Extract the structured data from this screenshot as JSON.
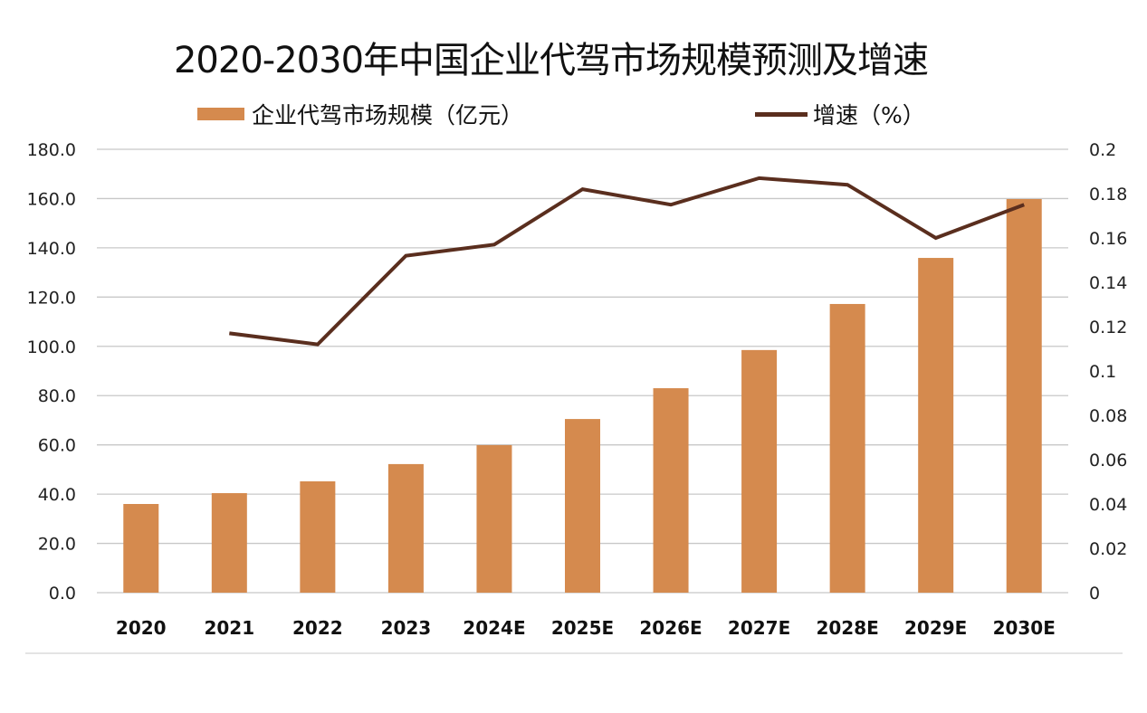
{
  "chart_data": {
    "type": "bar",
    "title": "2020-2030年中国企业代驾市场规模预测及增速",
    "categories": [
      "2020",
      "2021",
      "2022",
      "2023",
      "2024E",
      "2025E",
      "2026E",
      "2027E",
      "2028E",
      "2029E",
      "2030E"
    ],
    "series": [
      {
        "name": "企业代驾市场规模（亿元）",
        "type": "bar",
        "axis": "left",
        "color": "#D58A4E",
        "values": [
          36.0,
          40.4,
          45.2,
          52.2,
          59.9,
          70.5,
          83.0,
          98.5,
          117.2,
          135.9,
          159.8
        ]
      },
      {
        "name": "增速（%）",
        "type": "line",
        "axis": "right",
        "color": "#5A2E1E",
        "values": [
          null,
          0.117,
          0.112,
          0.152,
          0.157,
          0.182,
          0.175,
          0.187,
          0.184,
          0.16,
          0.175
        ]
      }
    ],
    "xlabel": "",
    "ylabel": "",
    "ylim": [
      0,
      180
    ],
    "y_ticks": [
      "0.0",
      "20.0",
      "40.0",
      "60.0",
      "80.0",
      "100.0",
      "120.0",
      "140.0",
      "160.0",
      "180.0"
    ],
    "y2lim": [
      0,
      0.2
    ],
    "y2_ticks": [
      "0",
      "0.02",
      "0.04",
      "0.06",
      "0.08",
      "0.1",
      "0.12",
      "0.14",
      "0.16",
      "0.18",
      "0.2"
    ],
    "grid": true,
    "legend": "top"
  }
}
